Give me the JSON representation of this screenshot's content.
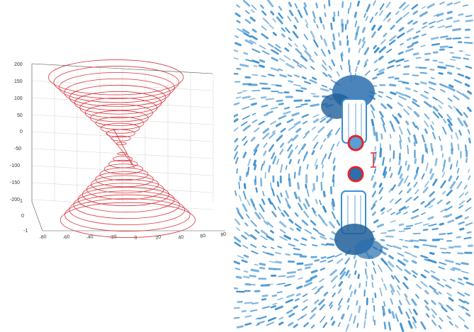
{
  "plot": {
    "z_ticks": [
      "200",
      "150",
      "100",
      "50",
      "0",
      "-50",
      "-100",
      "-150",
      "-200"
    ],
    "y_ticks": [
      "1",
      "0",
      "-1"
    ],
    "x_ticks": [
      "-80",
      "-60",
      "-40",
      "-20",
      "0",
      "20",
      "40",
      "60",
      "80"
    ],
    "curve_color": "#d9343d",
    "grid": true
  },
  "field_image": {
    "streamline_color": "#3a8fd0",
    "dark_color": "#1e5f99",
    "marker_color": "#e0252c",
    "markers": 2
  }
}
